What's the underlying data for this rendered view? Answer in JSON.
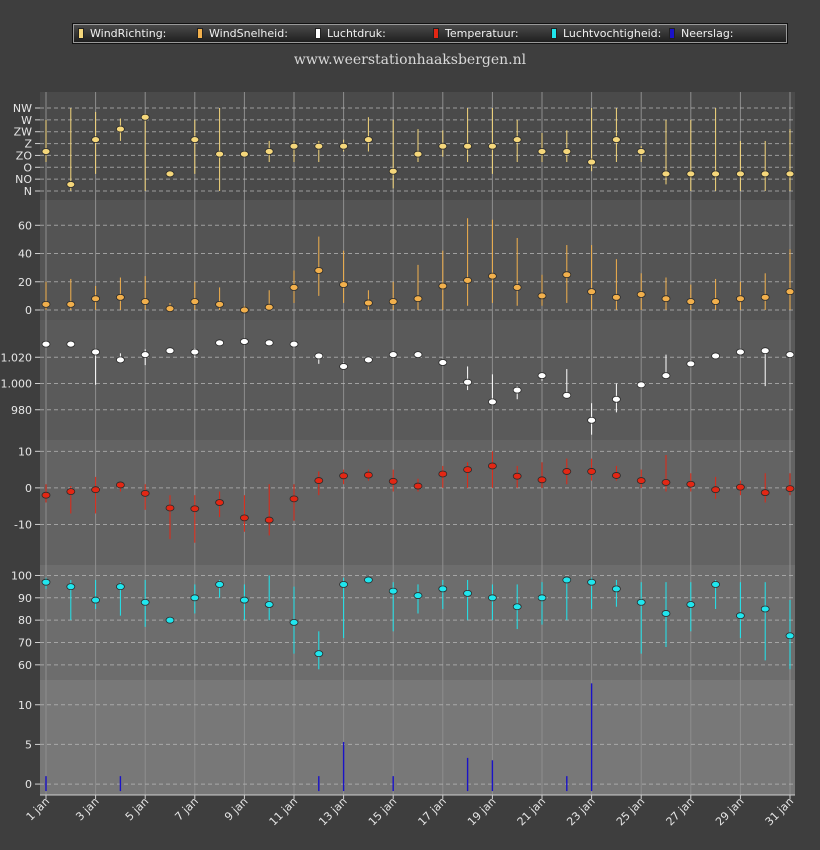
{
  "legend": [
    {
      "label": "WindRichting:",
      "color": "#f5d77b"
    },
    {
      "label": "WindSnelheid:",
      "color": "#f2b04c"
    },
    {
      "label": "Luchtdruk:",
      "color": "#ffffff"
    },
    {
      "label": "Temperatuur:",
      "color": "#e32714"
    },
    {
      "label": "Luchtvochtigheid:",
      "color": "#20e6ee"
    },
    {
      "label": "Neerslag:",
      "color": "#1a12c8"
    }
  ],
  "site_label": "www.weerstationhaaksbergen.nl",
  "chart_data": {
    "type": "scatter",
    "x_ticks": [
      "1 jan",
      "3 jan",
      "5 jan",
      "7 jan",
      "9 jan",
      "11 jan",
      "13 jan",
      "15 jan",
      "17 jan",
      "19 jan",
      "21 jan",
      "23 jan",
      "25 jan",
      "27 jan",
      "29 jan",
      "31 jan"
    ],
    "days": [
      1,
      2,
      3,
      4,
      5,
      6,
      7,
      8,
      9,
      10,
      11,
      12,
      13,
      14,
      15,
      16,
      17,
      18,
      19,
      20,
      21,
      22,
      23,
      24,
      25,
      26,
      27,
      28,
      29,
      30,
      31
    ],
    "panels": [
      {
        "name": "WindRichting",
        "color": "#f5d77b",
        "tick_labels": [
          "N",
          "NO",
          "O",
          "ZO",
          "Z",
          "ZW",
          "W",
          "NW"
        ],
        "tick_values": [
          0,
          45,
          90,
          135,
          180,
          225,
          270,
          315
        ],
        "ylim": [
          0,
          315
        ],
        "values": [
          150,
          25,
          195,
          235,
          280,
          65,
          195,
          140,
          140,
          150,
          170,
          170,
          170,
          195,
          75,
          140,
          170,
          170,
          170,
          195,
          150,
          150,
          110,
          195,
          150,
          65,
          65,
          65,
          65,
          65,
          65
        ],
        "low": [
          110,
          0,
          65,
          190,
          0,
          65,
          65,
          0,
          130,
          110,
          110,
          110,
          150,
          150,
          10,
          110,
          130,
          110,
          65,
          110,
          110,
          110,
          75,
          110,
          110,
          25,
          0,
          0,
          0,
          0,
          0
        ],
        "high": [
          270,
          315,
          300,
          275,
          280,
          65,
          270,
          315,
          150,
          190,
          190,
          190,
          195,
          280,
          270,
          235,
          230,
          315,
          315,
          270,
          220,
          230,
          315,
          315,
          170,
          270,
          270,
          315,
          190,
          190,
          235
        ]
      },
      {
        "name": "WindSnelheid",
        "color": "#f2b04c",
        "tick_labels": [
          "0",
          "20",
          "40",
          "60"
        ],
        "tick_values": [
          0,
          20,
          40,
          60
        ],
        "ylim": [
          0,
          68
        ],
        "values": [
          4,
          4,
          8,
          9,
          6,
          1,
          6,
          4,
          0,
          2,
          16,
          28,
          18,
          5,
          6,
          8,
          17,
          21,
          24,
          16,
          10,
          25,
          13,
          9,
          11,
          8,
          6,
          6,
          8,
          9,
          13
        ],
        "low": [
          0,
          0,
          0,
          0,
          0,
          0,
          0,
          0,
          0,
          0,
          5,
          10,
          5,
          0,
          0,
          0,
          0,
          3,
          5,
          3,
          3,
          5,
          0,
          0,
          0,
          0,
          0,
          0,
          0,
          0,
          0
        ],
        "high": [
          20,
          22,
          17,
          23,
          24,
          5,
          20,
          16,
          3,
          14,
          28,
          52,
          42,
          14,
          20,
          32,
          42,
          65,
          64,
          51,
          25,
          46,
          46,
          36,
          26,
          23,
          18,
          22,
          20,
          26,
          43
        ]
      },
      {
        "name": "Luchtdruk",
        "color": "#ffffff",
        "tick_labels": [
          "980",
          "1.000",
          "1.020"
        ],
        "tick_values": [
          980,
          1000,
          1020
        ],
        "ylim": [
          960,
          1040
        ],
        "values": [
          1030,
          1030,
          1024,
          1018,
          1022,
          1025,
          1024,
          1031,
          1032,
          1031,
          1030,
          1021,
          1013,
          1018,
          1022,
          1022,
          1016,
          1001,
          986,
          995,
          1006,
          991,
          972,
          988,
          999,
          1006,
          1015,
          1021,
          1024,
          1025,
          1022
        ],
        "low": [
          1030,
          1030,
          999,
          1016,
          1014,
          1025,
          1020,
          1031,
          1032,
          1031,
          1027,
          1015,
          1012,
          1018,
          1021,
          1022,
          1014,
          995,
          986,
          988,
          1002,
          990,
          961,
          978,
          999,
          1004,
          1013,
          1021,
          1024,
          998,
          1022
        ],
        "high": [
          1031,
          1031,
          1026,
          1023,
          1026,
          1025,
          1027,
          1032,
          1032,
          1031,
          1031,
          1022,
          1016,
          1019,
          1023,
          1023,
          1018,
          1013,
          1007,
          998,
          1008,
          1011,
          985,
          1000,
          1000,
          1022,
          1018,
          1022,
          1025,
          1026,
          1023
        ]
      },
      {
        "name": "Temperatuur",
        "color": "#e32714",
        "tick_labels": [
          "-10",
          "0",
          "10"
        ],
        "tick_values": [
          -10,
          0,
          10
        ],
        "ylim": [
          -20,
          12
        ],
        "values": [
          -2,
          -1,
          -0.5,
          0.8,
          -1.5,
          -5.5,
          -5.7,
          -4,
          -8.2,
          -8.8,
          -3,
          2,
          3.3,
          3.5,
          1.8,
          0.5,
          3.8,
          5,
          6,
          3.2,
          2.2,
          4.5,
          4.5,
          3.4,
          2,
          1.5,
          1,
          -0.5,
          0.2,
          -1.3,
          -0.2
        ],
        "low": [
          -4,
          -7,
          -7,
          -1,
          -6,
          -14,
          -15,
          -8,
          -12,
          -13,
          -9,
          -2,
          1,
          2,
          -1,
          -1,
          0,
          0,
          0,
          0,
          0,
          1,
          2,
          2,
          0,
          -1,
          -1,
          -3,
          -2,
          -4,
          -2
        ],
        "high": [
          1,
          0.5,
          3,
          1.5,
          1,
          -2,
          -2,
          -1,
          -2,
          1,
          1,
          4.5,
          5,
          5,
          5,
          2.5,
          6,
          7,
          10,
          6,
          7,
          8,
          8,
          6,
          5,
          9,
          4,
          3,
          2,
          4,
          4
        ]
      },
      {
        "name": "Luchtvochtigheid",
        "color": "#20e6ee",
        "tick_labels": [
          "60",
          "70",
          "80",
          "90",
          "100"
        ],
        "tick_values": [
          60,
          70,
          80,
          90,
          100
        ],
        "ylim": [
          55,
          102
        ],
        "values": [
          97,
          95,
          89,
          95,
          88,
          80,
          90,
          96,
          89,
          87,
          79,
          65,
          96,
          98,
          93,
          91,
          94,
          92,
          90,
          86,
          90,
          98,
          97,
          94,
          88,
          83,
          87,
          96,
          82,
          85,
          73
        ],
        "low": [
          94,
          80,
          85,
          82,
          77,
          80,
          83,
          90,
          80,
          80,
          65,
          58,
          72,
          97,
          75,
          83,
          85,
          80,
          80,
          76,
          78,
          80,
          85,
          86,
          65,
          68,
          75,
          85,
          72,
          62,
          58
        ],
        "high": [
          99,
          98,
          98,
          97,
          98,
          81,
          96,
          98,
          96,
          100,
          95,
          75,
          99,
          99,
          97,
          96,
          98,
          98,
          96,
          96,
          97,
          99,
          99,
          98,
          97,
          97,
          97,
          98,
          97,
          97,
          89
        ]
      },
      {
        "name": "Neerslag",
        "color": "#1a12c8",
        "tick_labels": [
          "0",
          "5",
          "10"
        ],
        "tick_values": [
          0,
          5,
          10
        ],
        "ylim": [
          -1,
          13.5
        ],
        "values": [
          1,
          0,
          0,
          1,
          0,
          0,
          0,
          0,
          0,
          0,
          0,
          1,
          5.3,
          0,
          1,
          0,
          0,
          3.3,
          3,
          0,
          0,
          1,
          12.7,
          0,
          0,
          0,
          0,
          0,
          0,
          0,
          0
        ]
      }
    ]
  }
}
